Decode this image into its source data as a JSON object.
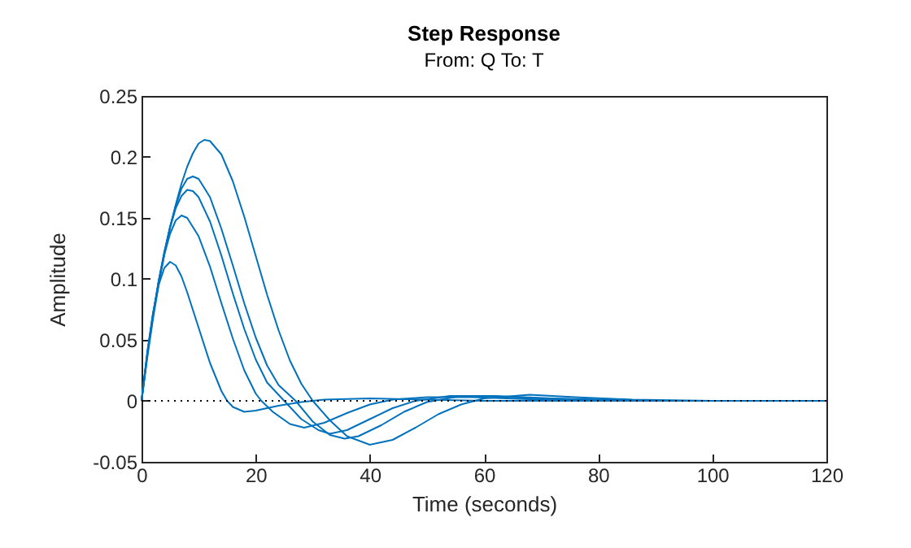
{
  "chart_data": {
    "type": "line",
    "title": "Step Response",
    "subtitle": "From: Q  To: T",
    "xlabel": "Time (seconds)",
    "ylabel": "Amplitude",
    "xlim": [
      0,
      120
    ],
    "xticks": [
      0,
      20,
      40,
      60,
      80,
      100,
      120
    ],
    "ylim": [
      -0.05,
      0.25
    ],
    "yticks": [
      -0.05,
      0,
      0.05,
      0.1,
      0.15,
      0.2,
      0.25
    ],
    "grid": false,
    "legend": false,
    "ref_lines": [
      {
        "axis": "y",
        "value": 0,
        "line_style": "dotted",
        "color": "#000000"
      }
    ],
    "series": [
      {
        "color": "#0072bd",
        "x": [
          0,
          1,
          2,
          3,
          4,
          5,
          6,
          7,
          8,
          10,
          12,
          14,
          15,
          16,
          18,
          20,
          24,
          28,
          32,
          40,
          50,
          60,
          80,
          100,
          120
        ],
        "values": [
          0,
          0.04,
          0.072,
          0.095,
          0.109,
          0.114,
          0.111,
          0.102,
          0.089,
          0.06,
          0.031,
          0.008,
          0,
          -0.005,
          -0.009,
          -0.008,
          -0.004,
          -0.001,
          0.001,
          0.002,
          0.001,
          0,
          0,
          0,
          0
        ]
      },
      {
        "color": "#0072bd",
        "x": [
          0,
          1,
          2,
          3,
          4,
          5,
          6,
          7,
          8,
          10,
          12,
          14,
          16,
          18,
          20,
          21,
          23,
          26,
          28.5,
          32,
          36,
          40,
          44,
          50,
          58,
          70,
          85,
          120
        ],
        "values": [
          0,
          0.038,
          0.07,
          0.098,
          0.12,
          0.137,
          0.148,
          0.152,
          0.15,
          0.135,
          0.11,
          0.08,
          0.051,
          0.025,
          0.006,
          0,
          -0.009,
          -0.019,
          -0.022,
          -0.018,
          -0.01,
          -0.003,
          0.001,
          0.003,
          0.003,
          0.001,
          0,
          0
        ]
      },
      {
        "color": "#0072bd",
        "x": [
          0,
          1,
          2,
          3,
          4,
          5,
          6,
          7,
          8,
          9,
          10,
          12,
          14,
          16,
          18,
          20,
          22,
          25,
          28,
          31,
          33,
          36,
          40,
          44,
          48,
          54,
          60,
          70,
          85,
          120
        ],
        "values": [
          0,
          0.038,
          0.07,
          0.098,
          0.122,
          0.142,
          0.158,
          0.168,
          0.173,
          0.172,
          0.167,
          0.147,
          0.119,
          0.088,
          0.059,
          0.034,
          0.015,
          0,
          -0.015,
          -0.024,
          -0.027,
          -0.024,
          -0.015,
          -0.006,
          0,
          0.004,
          0.004,
          0.002,
          0,
          0
        ]
      },
      {
        "color": "#0072bd",
        "x": [
          0,
          1,
          2,
          3,
          4,
          5,
          6,
          7,
          8,
          9,
          10,
          12,
          14,
          16,
          18,
          20,
          22,
          24,
          27,
          30,
          33,
          35.6,
          38,
          42,
          46,
          50,
          56,
          62,
          72,
          88,
          120
        ],
        "values": [
          0,
          0.038,
          0.07,
          0.098,
          0.122,
          0.143,
          0.16,
          0.174,
          0.182,
          0.184,
          0.182,
          0.167,
          0.141,
          0.111,
          0.08,
          0.052,
          0.029,
          0.013,
          0,
          -0.017,
          -0.028,
          -0.031,
          -0.029,
          -0.02,
          -0.009,
          -0.001,
          0.004,
          0.004,
          0.002,
          0,
          0
        ]
      },
      {
        "color": "#0072bd",
        "x": [
          0,
          1,
          2,
          3,
          4,
          5,
          6,
          7,
          8,
          9,
          10,
          11,
          12,
          14,
          16,
          18,
          20,
          22,
          24,
          26,
          28,
          30,
          33,
          36,
          40,
          44,
          48,
          52,
          56,
          60,
          68,
          76,
          86,
          100,
          120
        ],
        "values": [
          0,
          0.035,
          0.067,
          0.095,
          0.12,
          0.142,
          0.161,
          0.178,
          0.192,
          0.203,
          0.211,
          0.214,
          0.213,
          0.202,
          0.18,
          0.151,
          0.119,
          0.087,
          0.058,
          0.033,
          0.014,
          0,
          -0.016,
          -0.029,
          -0.036,
          -0.032,
          -0.022,
          -0.011,
          -0.003,
          0.002,
          0.005,
          0.003,
          0.001,
          0,
          0
        ]
      }
    ]
  }
}
